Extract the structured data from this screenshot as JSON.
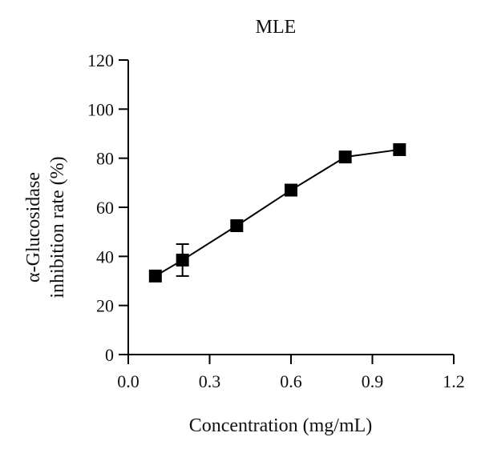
{
  "chart_data": {
    "type": "line",
    "title": "MLE",
    "xlabel": "Concentration (mg/mL)",
    "ylabel_lines": [
      "α-Glucosidase",
      "inhibition rate (%)"
    ],
    "xlim": [
      0.0,
      1.2
    ],
    "ylim": [
      0,
      120
    ],
    "xticks": [
      0.0,
      0.3,
      0.6,
      0.9,
      1.2
    ],
    "xtick_labels": [
      "0.0",
      "0.3",
      "0.6",
      "0.9",
      "1.2"
    ],
    "yticks": [
      0,
      20,
      40,
      60,
      80,
      100,
      120
    ],
    "ytick_labels": [
      "0",
      "20",
      "40",
      "60",
      "80",
      "100",
      "120"
    ],
    "grid": false,
    "series": [
      {
        "marker": "square",
        "color": "#000000",
        "x": [
          0.1,
          0.2,
          0.4,
          0.6,
          0.8,
          1.0
        ],
        "y": [
          32,
          38.5,
          52.5,
          67,
          80.5,
          83.5
        ],
        "error": [
          null,
          6.5,
          null,
          null,
          null,
          null
        ]
      }
    ]
  }
}
